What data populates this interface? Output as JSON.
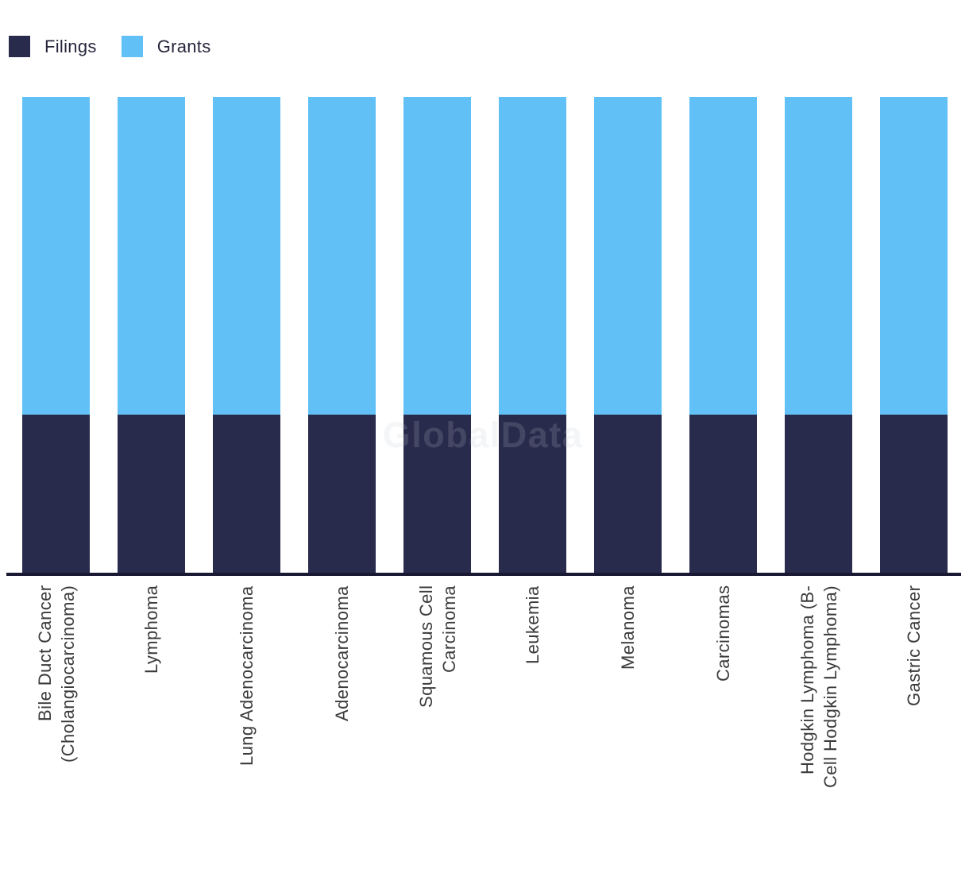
{
  "watermark": {
    "text": "GlobalData"
  },
  "legend": {
    "items": [
      {
        "label": "Filings",
        "color": "#292b4c"
      },
      {
        "label": "Grants",
        "color": "#61c1f6"
      }
    ]
  },
  "chart_data": {
    "type": "bar",
    "stacked": true,
    "units": "percent_of_total",
    "title": "",
    "xlabel": "",
    "ylabel": "",
    "ylim": [
      0,
      100
    ],
    "grid": false,
    "y_axis_visible": false,
    "legend_position": "top-left",
    "watermark": "GlobalData",
    "categories": [
      "Bile Duct Cancer (Cholangiocarcinoma)",
      "Lymphoma",
      "Lung Adenocarcinoma",
      "Adenocarcinoma",
      "Squamous Cell Carcinoma",
      "Leukemia",
      "Melanoma",
      "Carcinomas",
      "Hodgkin Lymphoma (B-Cell Hodgkin Lymphoma)",
      "Gastric Cancer"
    ],
    "category_lines": [
      [
        "Bile Duct Cancer",
        "(Cholangiocarcinoma)"
      ],
      [
        "Lymphoma"
      ],
      [
        "Lung Adenocarcinoma"
      ],
      [
        "Adenocarcinoma"
      ],
      [
        "Squamous Cell",
        "Carcinoma"
      ],
      [
        "Leukemia"
      ],
      [
        "Melanoma"
      ],
      [
        "Carcinomas"
      ],
      [
        "Hodgkin Lymphoma (B-",
        "Cell Hodgkin Lymphoma)"
      ],
      [
        "Gastric Cancer"
      ]
    ],
    "series": [
      {
        "name": "Filings",
        "color": "#292b4c",
        "values": [
          33.3,
          33.3,
          33.3,
          33.3,
          33.3,
          33.3,
          33.3,
          33.3,
          33.3,
          33.3
        ]
      },
      {
        "name": "Grants",
        "color": "#61c1f6",
        "values": [
          66.7,
          66.7,
          66.7,
          66.7,
          66.7,
          66.7,
          66.7,
          66.7,
          66.7,
          66.7
        ]
      }
    ]
  }
}
